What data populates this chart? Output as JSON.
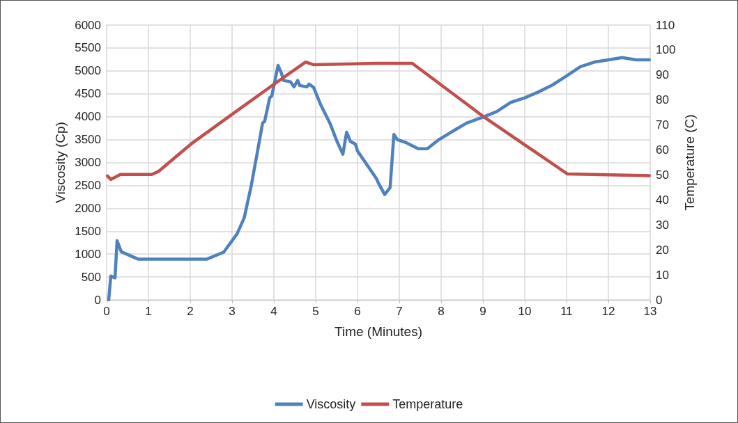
{
  "chart_data": {
    "type": "line",
    "xlabel": "Time (Minutes)",
    "ylabel": "Viscosity (Cp)",
    "y2label": "Temperature (C)",
    "xlim": [
      0,
      13
    ],
    "xticks": [
      0,
      1,
      2,
      3,
      4,
      5,
      6,
      7,
      8,
      9,
      10,
      11,
      12,
      13
    ],
    "ylim": [
      0,
      6000
    ],
    "yticks": [
      0,
      500,
      1000,
      1500,
      2000,
      2500,
      3000,
      3500,
      4000,
      4500,
      5000,
      5500,
      6000
    ],
    "y2lim": [
      0,
      110
    ],
    "y2ticks": [
      0,
      10,
      20,
      30,
      40,
      50,
      60,
      70,
      80,
      90,
      100,
      110
    ],
    "grid": true,
    "legend": "bottom",
    "marker": "none",
    "line_style": "solid",
    "series": [
      {
        "name": "Viscosity",
        "color": "#4f81bd",
        "x": [
          0.05,
          0.1,
          0.2,
          0.25,
          0.35,
          0.75,
          1.5,
          2.4,
          2.8,
          3.12,
          3.29,
          3.46,
          3.62,
          3.73,
          3.78,
          3.9,
          3.95,
          4.1,
          4.18,
          4.23,
          4.4,
          4.48,
          4.57,
          4.62,
          4.79,
          4.84,
          4.95,
          5.12,
          5.34,
          5.51,
          5.65,
          5.74,
          5.83,
          5.95,
          6.0,
          6.45,
          6.5,
          6.65,
          6.78,
          6.87,
          6.95,
          7.17,
          7.45,
          7.67,
          7.95,
          8.33,
          8.61,
          9.0,
          9.33,
          9.66,
          10.0,
          10.33,
          10.66,
          11.0,
          11.33,
          11.66,
          12.0,
          12.33,
          12.66,
          12.98
        ],
        "values": [
          0,
          520,
          480,
          1290,
          1050,
          890,
          890,
          890,
          1040,
          1440,
          1790,
          2500,
          3300,
          3860,
          3900,
          4410,
          4450,
          5120,
          4950,
          4790,
          4760,
          4650,
          4790,
          4680,
          4650,
          4710,
          4640,
          4260,
          3860,
          3460,
          3180,
          3660,
          3460,
          3400,
          3250,
          2650,
          2550,
          2300,
          2450,
          3610,
          3500,
          3430,
          3300,
          3300,
          3500,
          3710,
          3860,
          3990,
          4110,
          4310,
          4410,
          4540,
          4690,
          4890,
          5090,
          5190,
          5240,
          5290,
          5240,
          5240
        ]
      },
      {
        "name": "Temperature",
        "color": "#c0504d",
        "axis": "y2",
        "x": [
          0.02,
          0.1,
          0.33,
          1.08,
          1.24,
          2.02,
          3.01,
          4.01,
          4.76,
          4.95,
          6.45,
          7.31,
          9.0,
          11.02,
          12.98
        ],
        "values": [
          49.6,
          48.2,
          50.2,
          50.2,
          51.4,
          62.4,
          74.4,
          86.4,
          95.2,
          94.1,
          94.7,
          94.7,
          73.5,
          50.4,
          49.7
        ]
      }
    ]
  }
}
